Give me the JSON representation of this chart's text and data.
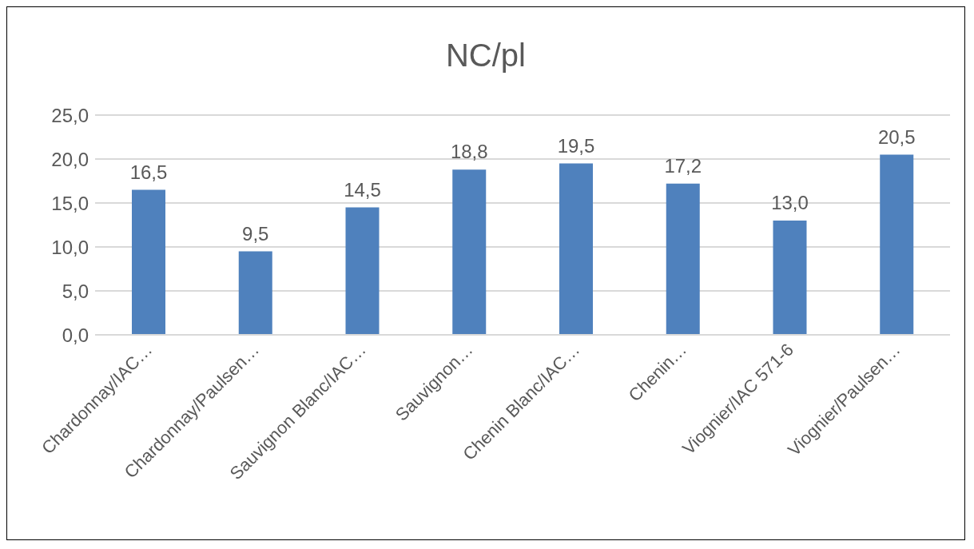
{
  "chart_data": {
    "type": "bar",
    "title": "NC/pl",
    "categories": [
      "Chardonnay/IAC…",
      "Chardonnay/Paulsen…",
      "Sauvignon Blanc/IAC…",
      "Sauvignon…",
      "Chenin Blanc/IAC…",
      "Chenin…",
      "Viognier/IAC 571-6",
      "Viognier/Paulsen…"
    ],
    "values": [
      16.5,
      9.5,
      14.5,
      18.8,
      19.5,
      17.2,
      13.0,
      20.5
    ],
    "value_labels": [
      "16,5",
      "9,5",
      "14,5",
      "18,8",
      "19,5",
      "17,2",
      "13,0",
      "20,5"
    ],
    "color": "#4f81bd",
    "ylim": [
      0,
      25
    ],
    "yticks": [
      {
        "value": 0,
        "label": "0,0"
      },
      {
        "value": 5,
        "label": "5,0"
      },
      {
        "value": 10,
        "label": "10,0"
      },
      {
        "value": 15,
        "label": "15,0"
      },
      {
        "value": 20,
        "label": "20,0"
      },
      {
        "value": 25,
        "label": "25,0"
      }
    ],
    "grid": "y"
  }
}
